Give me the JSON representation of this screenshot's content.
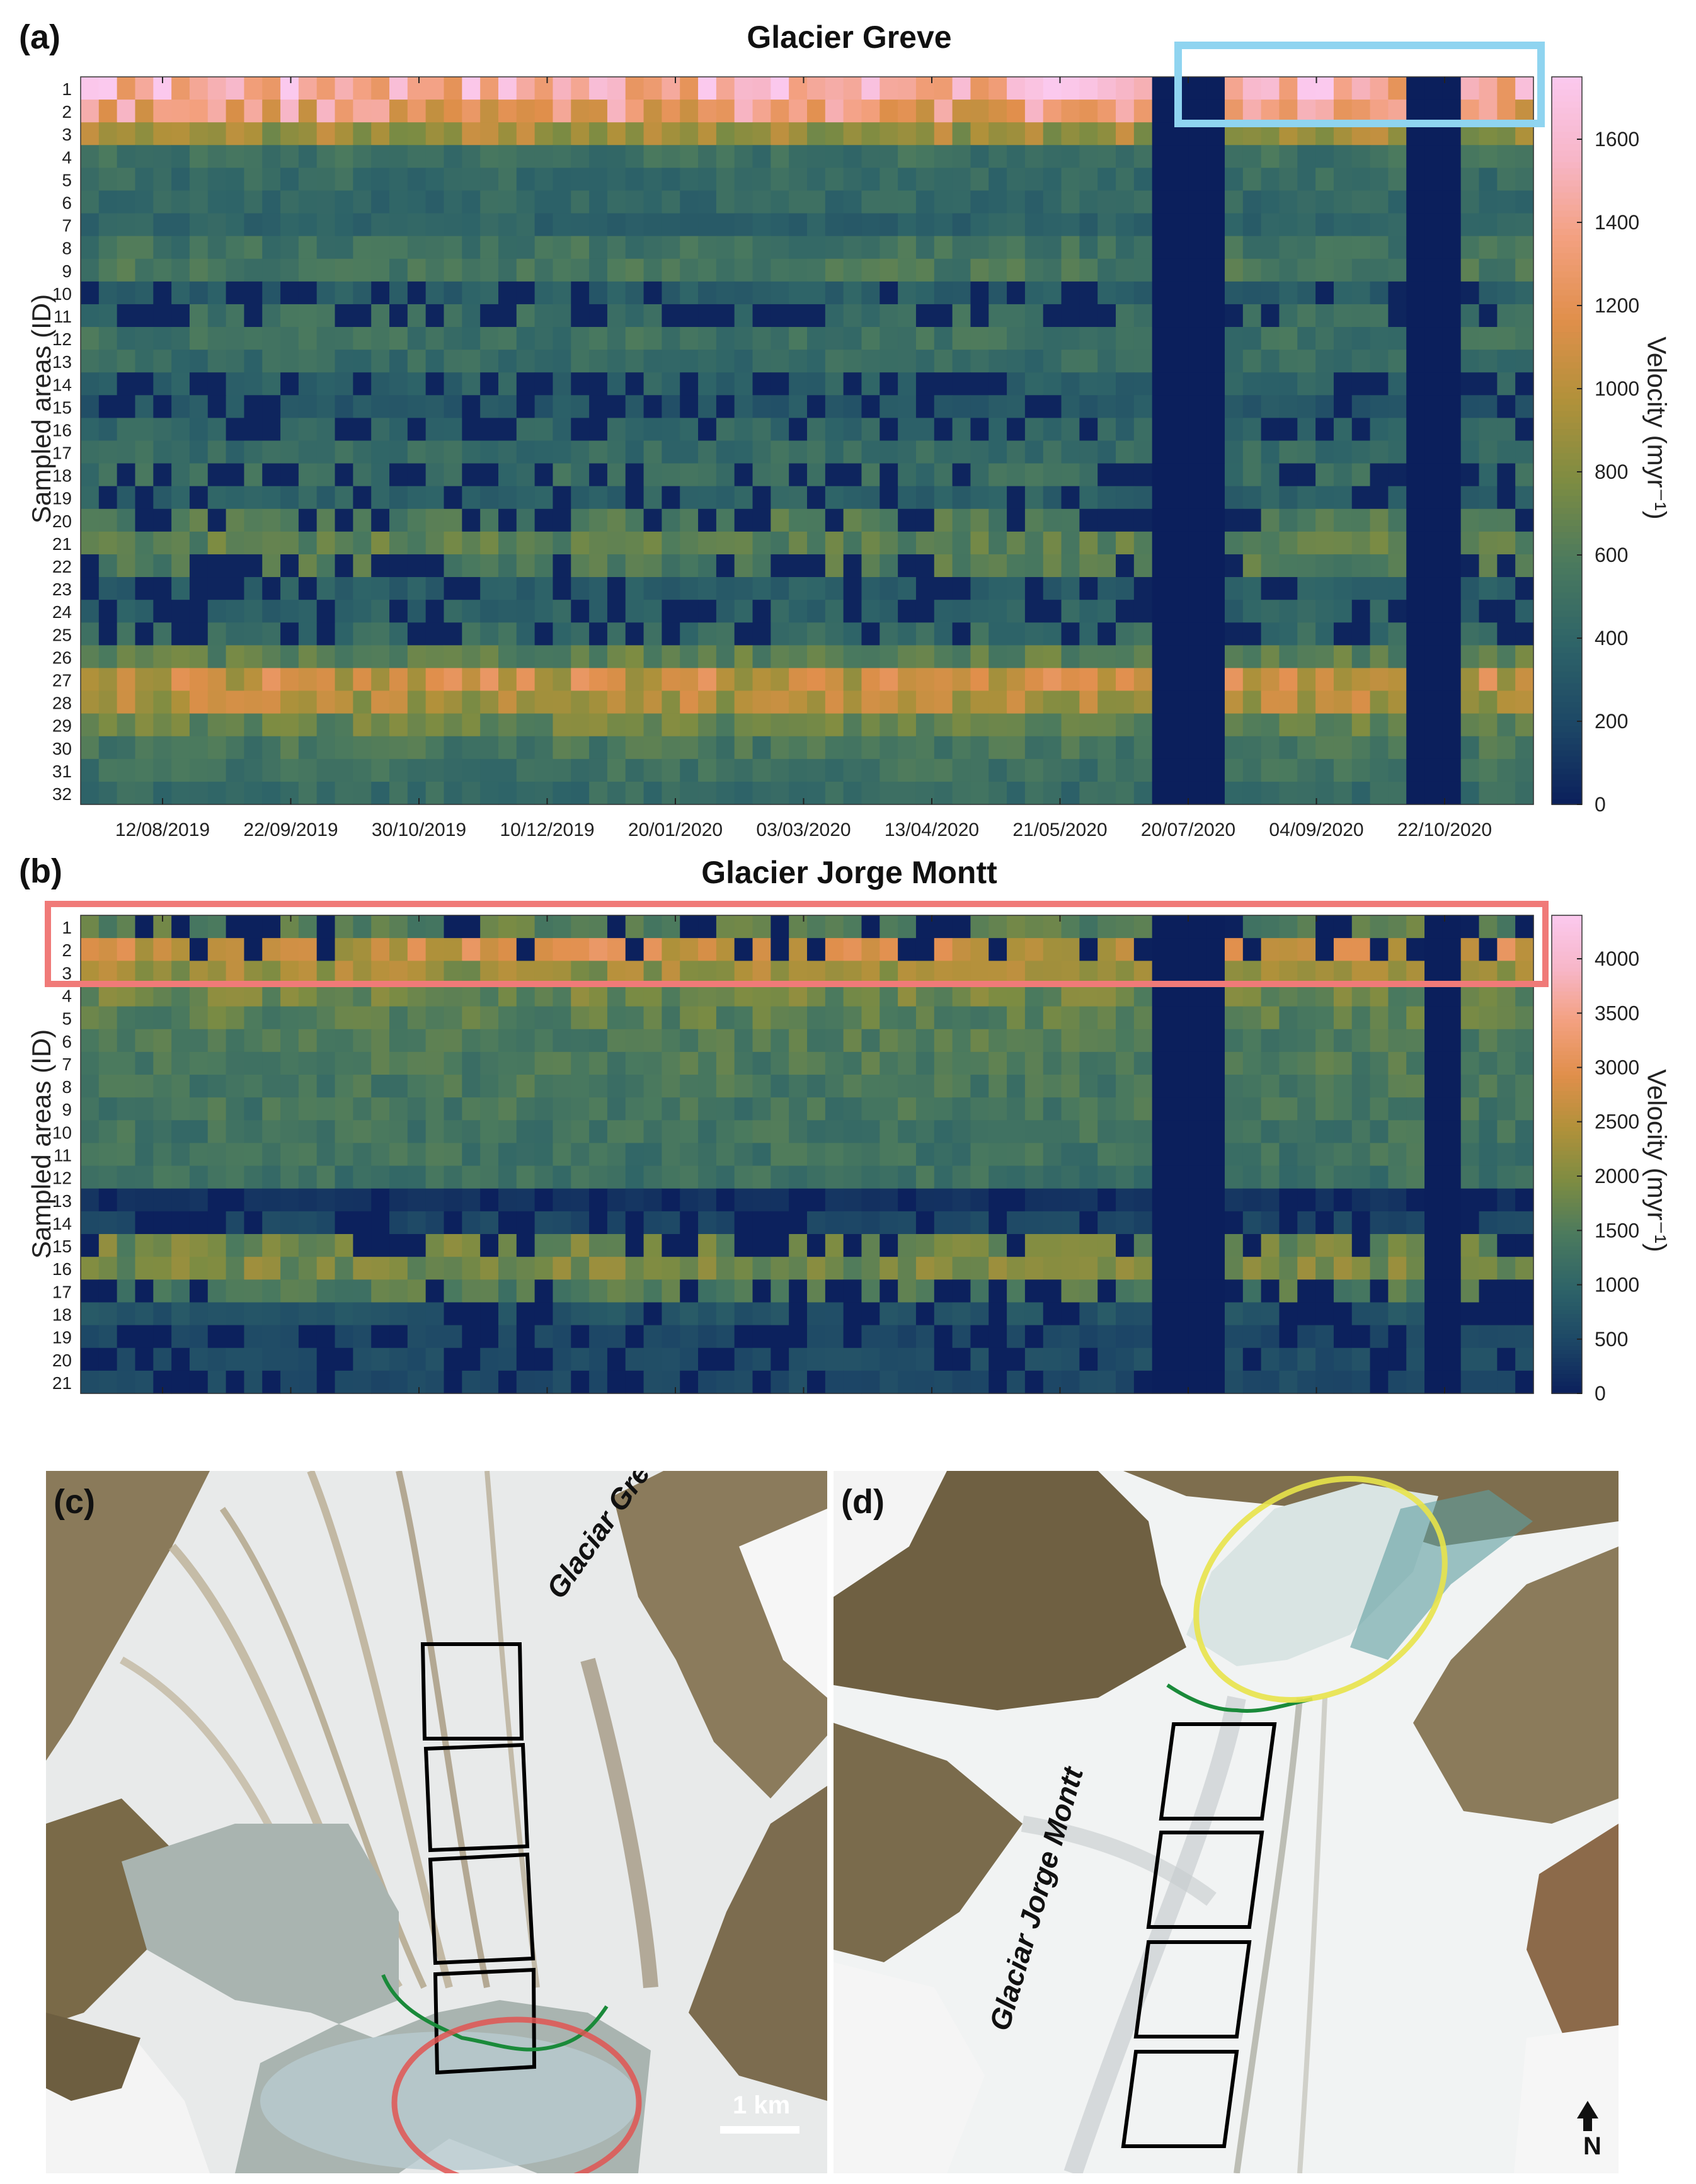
{
  "colors": {
    "colormap": [
      "#0b1f5c",
      "#1d4766",
      "#2e6468",
      "#4b7a5e",
      "#7d8c42",
      "#b1913a",
      "#e08f4b",
      "#f3a07f",
      "#f7b6c8",
      "#fbc9ee"
    ],
    "highlight_blue": "#8fd4f0",
    "highlight_red": "#f07a78",
    "highlight_yellow": "#e8e34a",
    "terminus_green": "#1a8a3a",
    "box_black": "#000000"
  },
  "chart_data": [
    {
      "panel": "(a)",
      "type": "heatmap",
      "title": "Glacier Greve",
      "xlabel": "",
      "ylabel": "Sampled areas (ID)",
      "colorbar_label": "Velocity (myr⁻¹)",
      "colorbar_range": [
        0,
        1750
      ],
      "colorbar_ticks": [
        "0",
        "200",
        "400",
        "600",
        "800",
        "1000",
        "1200",
        "1400",
        "1600"
      ],
      "x_tick_labels": [
        "12/08/2019",
        "22/09/2019",
        "30/10/2019",
        "10/12/2019",
        "20/01/2020",
        "03/03/2020",
        "13/04/2020",
        "21/05/2020",
        "20/07/2020",
        "04/09/2020",
        "22/10/2020"
      ],
      "rows": [
        "1",
        "2",
        "3",
        "4",
        "5",
        "6",
        "7",
        "8",
        "9",
        "10",
        "11",
        "12",
        "13",
        "14",
        "15",
        "16",
        "17",
        "18",
        "19",
        "20",
        "21",
        "22",
        "23",
        "24",
        "25",
        "26",
        "27",
        "28",
        "29",
        "30",
        "31",
        "32"
      ],
      "n_columns": 80,
      "row_typical_velocity": [
        1500,
        1300,
        900,
        500,
        450,
        420,
        380,
        520,
        550,
        350,
        480,
        500,
        450,
        380,
        300,
        420,
        450,
        480,
        380,
        600,
        650,
        600,
        350,
        380,
        450,
        650,
        1050,
        950,
        700,
        550,
        500,
        450
      ],
      "gap_columns": [
        59,
        60,
        61,
        62,
        73,
        74,
        75
      ],
      "highlight": "blue box over rows 1-2 (Jun-Nov 2020)"
    },
    {
      "panel": "(b)",
      "type": "heatmap",
      "title": "Glacier Jorge Montt",
      "xlabel": "",
      "ylabel": "Sampled areas (ID)",
      "colorbar_label": "Velocity (myr⁻¹)",
      "colorbar_range": [
        0,
        4400
      ],
      "colorbar_ticks": [
        "0",
        "500",
        "1000",
        "1500",
        "2000",
        "2500",
        "3000",
        "3500",
        "4000"
      ],
      "x_tick_labels": [
        "12/08/2019",
        "22/09/2019",
        "30/10/2019",
        "10/12/2019",
        "20/01/2020",
        "03/03/2020",
        "13/04/2020",
        "21/05/2020",
        "20/07/2020",
        "04/09/2020",
        "22/10/2020"
      ],
      "rows": [
        "1",
        "2",
        "3",
        "4",
        "5",
        "6",
        "7",
        "8",
        "9",
        "10",
        "11",
        "12",
        "13",
        "14",
        "15",
        "16",
        "17",
        "18",
        "19",
        "20",
        "21"
      ],
      "n_columns": 80,
      "row_typical_velocity": [
        1600,
        2700,
        2200,
        1800,
        1600,
        1500,
        1450,
        1400,
        1350,
        1300,
        1300,
        1250,
        250,
        500,
        1800,
        1900,
        1500,
        700,
        500,
        600,
        550
      ],
      "gap_columns": [
        59,
        60,
        61,
        62,
        74,
        75
      ],
      "highlight": "red box over rows 1-3"
    }
  ],
  "photos": {
    "c": {
      "label": "(c)",
      "glacier_name": "Glaciar Greve",
      "scale_label": "1 km"
    },
    "d": {
      "label": "(d)",
      "glacier_name": "Glaciar Jorge Montt",
      "north_label": "N"
    }
  }
}
